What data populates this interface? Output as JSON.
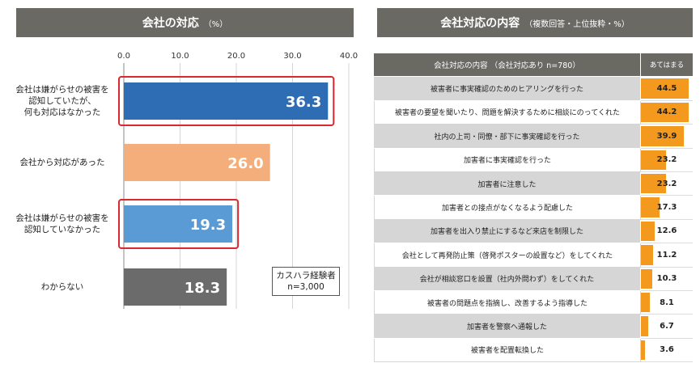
{
  "left_panel": {
    "title": "会社の対応",
    "title_unit": "（%）"
  },
  "right_panel": {
    "title": "会社対応の内容",
    "title_unit": "（複数回答・上位抜粋・%）"
  },
  "note": {
    "line1": "カスハラ経験者",
    "line2": "n=3,000"
  },
  "colors": {
    "header_bg": "#6b6964",
    "highlight": "#d9282f",
    "table_bar": "#f39a1e"
  },
  "chart_data": [
    {
      "type": "bar",
      "orientation": "horizontal",
      "title": "会社の対応",
      "unit": "%",
      "xlim": [
        0,
        40
      ],
      "ticks": [
        "0.0",
        "10.0",
        "20.0",
        "30.0",
        "40.0"
      ],
      "grid": true,
      "categories": [
        [
          "会社は嫌がらせの被害を",
          "認知していたが、",
          "何も対応はなかった"
        ],
        [
          "会社から対応があった"
        ],
        [
          "会社は嫌がらせの被害を",
          "認知していなかった"
        ],
        [
          "わからない"
        ]
      ],
      "values": [
        36.3,
        26.0,
        19.3,
        18.3
      ],
      "value_labels": [
        "36.3",
        "26.0",
        "19.3",
        "18.3"
      ],
      "bar_colors": [
        "#2e6db4",
        "#f4ae7c",
        "#5b9bd5",
        "#6b6b6b"
      ],
      "highlighted": [
        true,
        false,
        true,
        false
      ]
    },
    {
      "type": "table",
      "title": "会社対応の内容",
      "header": {
        "item": "会社対応の内容 （会社対応あり n=780）",
        "value": "あてはまる"
      },
      "xlim": [
        0,
        45
      ],
      "rows": [
        {
          "label": "被害者に事実確認のためのヒアリングを行った",
          "value": 44.5,
          "text": "44.5"
        },
        {
          "label": "被害者の要望を聞いたり、問題を解決するために相談にのってくれた",
          "value": 44.2,
          "text": "44.2"
        },
        {
          "label": "社内の上司・同僚・部下に事実確認を行った",
          "value": 39.9,
          "text": "39.9"
        },
        {
          "label": "加害者に事実確認を行った",
          "value": 23.2,
          "text": "23.2"
        },
        {
          "label": "加害者に注意した",
          "value": 23.2,
          "text": "23.2"
        },
        {
          "label": "加害者との接点がなくなるよう配慮した",
          "value": 17.3,
          "text": "17.3"
        },
        {
          "label": "加害者を出入り禁止にするなど来店を制限した",
          "value": 12.6,
          "text": "12.6"
        },
        {
          "label": "会社として再発防止策（啓発ポスターの設置など）をしてくれた",
          "value": 11.2,
          "text": "11.2"
        },
        {
          "label": "会社が相談窓口を設置（社内外問わず）をしてくれた",
          "value": 10.3,
          "text": "10.3"
        },
        {
          "label": "被害者の問題点を指摘し、改善するよう指導した",
          "value": 8.1,
          "text": "8.1"
        },
        {
          "label": "加害者を警察へ通報した",
          "value": 6.7,
          "text": "6.7"
        },
        {
          "label": "被害者を配置転換した",
          "value": 3.6,
          "text": "3.6"
        }
      ]
    }
  ]
}
